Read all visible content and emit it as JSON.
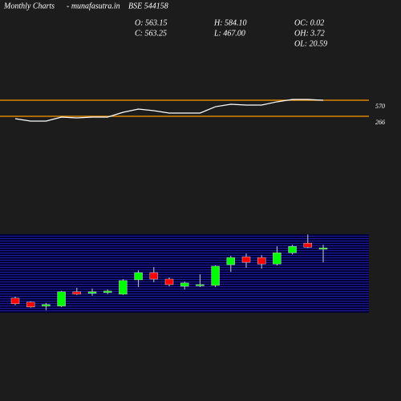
{
  "header": {
    "title": "Monthly Charts",
    "site": "- munafasutra.in",
    "symbol": "BSE 544158",
    "stats": [
      [
        "O: 563.15",
        "C: 563.25"
      ],
      [
        "H: 584.10",
        "L: 467.00"
      ],
      [
        "OC: 0.02",
        "OH: 3.72",
        "OL: 20.59"
      ]
    ]
  },
  "chart_data": [
    {
      "type": "line",
      "color": "#ffffff",
      "level_color": "#ff9900",
      "values": [
        220,
        175,
        175,
        251,
        236,
        251,
        251,
        342,
        403,
        372,
        327,
        327,
        327,
        448,
        494,
        479,
        479,
        540,
        585,
        585,
        570
      ],
      "levels": [
        570,
        266
      ],
      "ylim": [
        0,
        950
      ]
    },
    {
      "type": "candlestick",
      "up_color": "#00ff00",
      "down_color": "#ff0000",
      "open": [
        228,
        201,
        175,
        175,
        270,
        260,
        265,
        254,
        350,
        398,
        355,
        307,
        312,
        313,
        451,
        504,
        499,
        456,
        531,
        595,
        563.15
      ],
      "close": [
        190,
        169,
        185,
        270,
        254,
        270,
        275,
        345,
        398,
        355,
        318,
        329,
        318,
        441,
        499,
        467,
        456,
        531,
        573,
        568,
        563.25
      ],
      "high": [
        238,
        206,
        196,
        276,
        297,
        292,
        286,
        355,
        414,
        435,
        366,
        339,
        387,
        446,
        510,
        526,
        515,
        574,
        584,
        653,
        584.1
      ],
      "low": [
        180,
        164,
        148,
        169,
        249,
        244,
        254,
        249,
        302,
        334,
        307,
        286,
        302,
        302,
        403,
        430,
        425,
        446,
        520,
        563,
        467.0
      ],
      "ylim": [
        130,
        655
      ]
    }
  ]
}
